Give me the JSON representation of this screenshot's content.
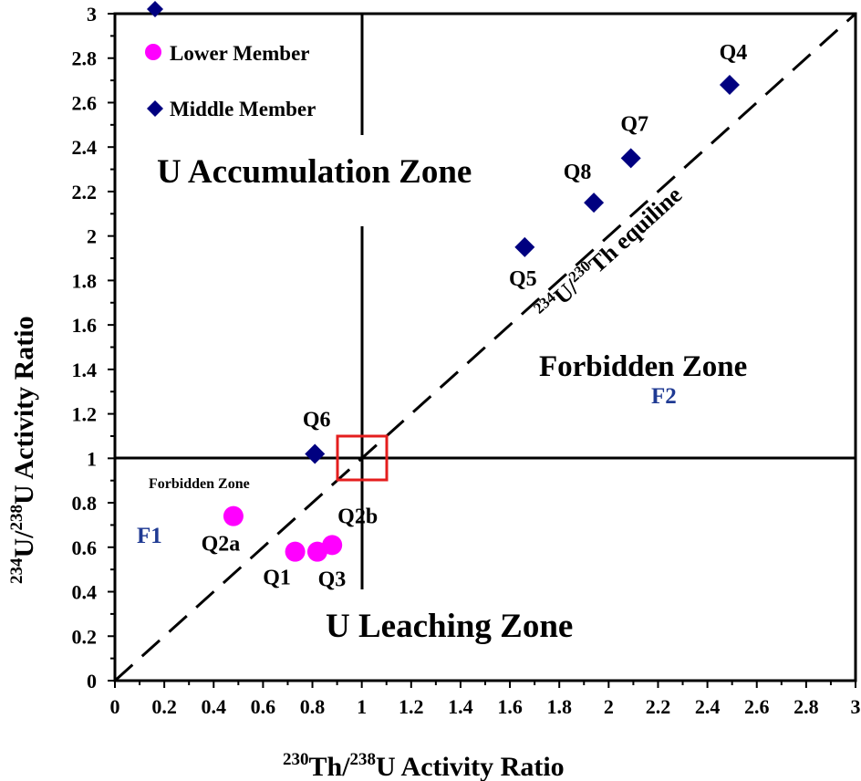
{
  "chart_data": {
    "type": "scatter",
    "xlabel_iso1": "230",
    "xlabel_el1": "Th/",
    "xlabel_iso2": "238",
    "xlabel_el2": "U Activity Ratio",
    "ylabel_iso1": "234",
    "ylabel_el1": "U/",
    "ylabel_iso2": "238",
    "ylabel_el2": "U Activity Ratio",
    "xlim": [
      0,
      3
    ],
    "ylim": [
      0,
      3
    ],
    "x_ticks": [
      "0",
      "0.2",
      "0.4",
      "0.6",
      "0.8",
      "1",
      "1.2",
      "1.4",
      "1.6",
      "1.8",
      "2",
      "2.2",
      "2.4",
      "2.6",
      "2.8",
      "3"
    ],
    "y_ticks": [
      "0",
      "0.2",
      "0.4",
      "0.6",
      "0.8",
      "1",
      "1.2",
      "1.4",
      "1.6",
      "1.8",
      "2",
      "2.2",
      "2.4",
      "2.6",
      "2.8",
      "3"
    ],
    "grid": false,
    "legend_position": "top-left",
    "series": [
      {
        "name": "Lower Member",
        "marker": "circle",
        "color": "#FF00FF",
        "points": [
          {
            "label": "Q2a",
            "x": 0.48,
            "y": 0.74
          },
          {
            "label": "Q1",
            "x": 0.73,
            "y": 0.58
          },
          {
            "label": "Q3",
            "x": 0.82,
            "y": 0.58
          },
          {
            "label": "Q2b",
            "x": 0.88,
            "y": 0.61
          }
        ]
      },
      {
        "name": "Middle Member",
        "marker": "diamond",
        "color": "#000080",
        "points": [
          {
            "label": "Q6",
            "x": 0.81,
            "y": 1.02
          },
          {
            "label": "Q5",
            "x": 1.66,
            "y": 1.95
          },
          {
            "label": "Q8",
            "x": 1.94,
            "y": 2.15
          },
          {
            "label": "Q7",
            "x": 2.09,
            "y": 2.35
          },
          {
            "label": "Q4",
            "x": 2.49,
            "y": 2.68
          }
        ]
      }
    ],
    "equiline": {
      "label_iso1": "234",
      "label_el1": "U/",
      "label_iso2": "230",
      "label_el2": "Th equiline",
      "line_style": "dashed"
    },
    "zones": {
      "accumulation": "U Accumulation Zone",
      "leaching": "U Leaching Zone",
      "forbidden_large": "Forbidden Zone",
      "forbidden_small": "Forbidden Zone",
      "f1": "F1",
      "f2": "F2"
    },
    "colors": {
      "region_label": "#1F3A93",
      "highlight_box": "#E41E1E",
      "lower_member": "#FF00FF",
      "middle_member": "#000080"
    }
  }
}
